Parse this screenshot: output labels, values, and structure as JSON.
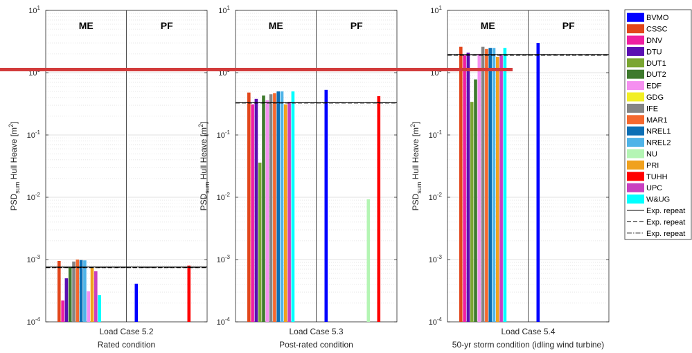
{
  "chart_data": {
    "type": "bar",
    "y_scale": "log",
    "ylim": [
      0.0001,
      10
    ],
    "y_ticks": [
      {
        "value": 10,
        "base": "10",
        "exp": "1"
      },
      {
        "value": 1,
        "base": "10",
        "exp": "0"
      },
      {
        "value": 0.1,
        "base": "10",
        "exp": "-1"
      },
      {
        "value": 0.01,
        "base": "10",
        "exp": "-2"
      },
      {
        "value": 0.001,
        "base": "10",
        "exp": "-3"
      },
      {
        "value": 0.0001,
        "base": "10",
        "exp": "-4"
      }
    ],
    "ylabel": {
      "main": "PSD",
      "sub": "sum",
      "rest": " Hull Heave [m",
      "sup": "2",
      "close": "]"
    },
    "regions": [
      "ME",
      "PF"
    ],
    "grid": "y-minor dotted",
    "legend": {
      "placement": "right",
      "entries": [
        {
          "name": "BVMO",
          "color": "#0000ff",
          "kind": "bar"
        },
        {
          "name": "CSSC",
          "color": "#e2461b",
          "kind": "bar"
        },
        {
          "name": "DNV",
          "color": "#ef1fa1",
          "kind": "bar"
        },
        {
          "name": "DTU",
          "color": "#5b0fb2",
          "kind": "bar"
        },
        {
          "name": "DUT1",
          "color": "#7aa632",
          "kind": "bar"
        },
        {
          "name": "DUT2",
          "color": "#3e7a2d",
          "kind": "bar"
        },
        {
          "name": "EDF",
          "color": "#f58ff0",
          "kind": "bar"
        },
        {
          "name": "GDG",
          "color": "#f2ef24",
          "kind": "bar"
        },
        {
          "name": "IFE",
          "color": "#858585",
          "kind": "bar"
        },
        {
          "name": "MAR1",
          "color": "#f5682e",
          "kind": "bar"
        },
        {
          "name": "NREL1",
          "color": "#0b6fb5",
          "kind": "bar"
        },
        {
          "name": "NREL2",
          "color": "#4fb4e8",
          "kind": "bar"
        },
        {
          "name": "NU",
          "color": "#b4f5b4",
          "kind": "bar"
        },
        {
          "name": "PRI",
          "color": "#f0a11e",
          "kind": "bar"
        },
        {
          "name": "TUHH",
          "color": "#ff0000",
          "kind": "bar"
        },
        {
          "name": "UPC",
          "color": "#c940c0",
          "kind": "bar"
        },
        {
          "name": "W&UG",
          "color": "#00ffff",
          "kind": "bar"
        },
        {
          "name": "Exp. repeat",
          "color": "#000000",
          "kind": "line",
          "dash": ""
        },
        {
          "name": "Exp. repeat",
          "color": "#000000",
          "kind": "line",
          "dash": "6,3"
        },
        {
          "name": "Exp. repeat",
          "color": "#000000",
          "kind": "line",
          "dash": "7,2,1.5,2"
        }
      ]
    },
    "panels": [
      {
        "xlabel": "Load Case 5.2",
        "subtitle": "Rated condition",
        "exp_lines": [
          0.00076,
          0.00074,
          0.00075
        ],
        "ME": [
          {
            "name": "CSSC",
            "value": 0.00095
          },
          {
            "name": "DNV",
            "value": 0.00022
          },
          {
            "name": "DTU",
            "value": 0.0005
          },
          {
            "name": "DUT2",
            "value": 0.00076
          },
          {
            "name": "IFE",
            "value": 0.00093
          },
          {
            "name": "MAR1",
            "value": 0.001
          },
          {
            "name": "NREL1",
            "value": 0.00098
          },
          {
            "name": "NREL2",
            "value": 0.00097
          },
          {
            "name": "EDF",
            "value": 0.00031
          },
          {
            "name": "PRI",
            "value": 0.00075
          },
          {
            "name": "UPC",
            "value": 0.00065
          },
          {
            "name": "W&UG",
            "value": 0.00027
          }
        ],
        "PF": [
          {
            "name": "BVMO",
            "value": 0.00041
          },
          {
            "name": "TUHH",
            "value": 0.0008
          }
        ]
      },
      {
        "xlabel": "Load Case 5.3",
        "subtitle": "Post-rated condition",
        "exp_lines": [
          0.33,
          0.325,
          0.33
        ],
        "ME": [
          {
            "name": "CSSC",
            "value": 0.48
          },
          {
            "name": "DNV",
            "value": 0.31
          },
          {
            "name": "DTU",
            "value": 0.38
          },
          {
            "name": "DUT1",
            "value": 0.036
          },
          {
            "name": "DUT2",
            "value": 0.43
          },
          {
            "name": "EDF",
            "value": 0.36
          },
          {
            "name": "IFE",
            "value": 0.45
          },
          {
            "name": "MAR1",
            "value": 0.47
          },
          {
            "name": "NREL1",
            "value": 0.5
          },
          {
            "name": "NREL2",
            "value": 0.5
          },
          {
            "name": "PRI",
            "value": 0.31
          },
          {
            "name": "UPC",
            "value": 0.34
          },
          {
            "name": "W&UG",
            "value": 0.5
          }
        ],
        "PF": [
          {
            "name": "BVMO",
            "value": 0.53
          },
          {
            "name": "NU",
            "value": 0.0093
          },
          {
            "name": "TUHH",
            "value": 0.42
          }
        ]
      },
      {
        "xlabel": "Load Case 5.4",
        "subtitle": "50-yr storm condition (idling wind turbine)",
        "exp_lines": [
          1.95,
          1.9,
          1.95
        ],
        "ME": [
          {
            "name": "CSSC",
            "value": 2.6
          },
          {
            "name": "DNV",
            "value": 1.9
          },
          {
            "name": "DTU",
            "value": 2.1
          },
          {
            "name": "DUT1",
            "value": 0.34
          },
          {
            "name": "DUT2",
            "value": 0.78
          },
          {
            "name": "EDF",
            "value": 2.0
          },
          {
            "name": "IFE",
            "value": 2.6
          },
          {
            "name": "MAR1",
            "value": 2.4
          },
          {
            "name": "NREL1",
            "value": 2.5
          },
          {
            "name": "NREL2",
            "value": 2.5
          },
          {
            "name": "PRI",
            "value": 1.8
          },
          {
            "name": "UPC",
            "value": 1.9
          },
          {
            "name": "W&UG",
            "value": 2.5
          }
        ],
        "PF": [
          {
            "name": "BVMO",
            "value": 3.0
          }
        ]
      }
    ]
  },
  "overlay": {
    "annotation_color": "#d23b3b"
  }
}
